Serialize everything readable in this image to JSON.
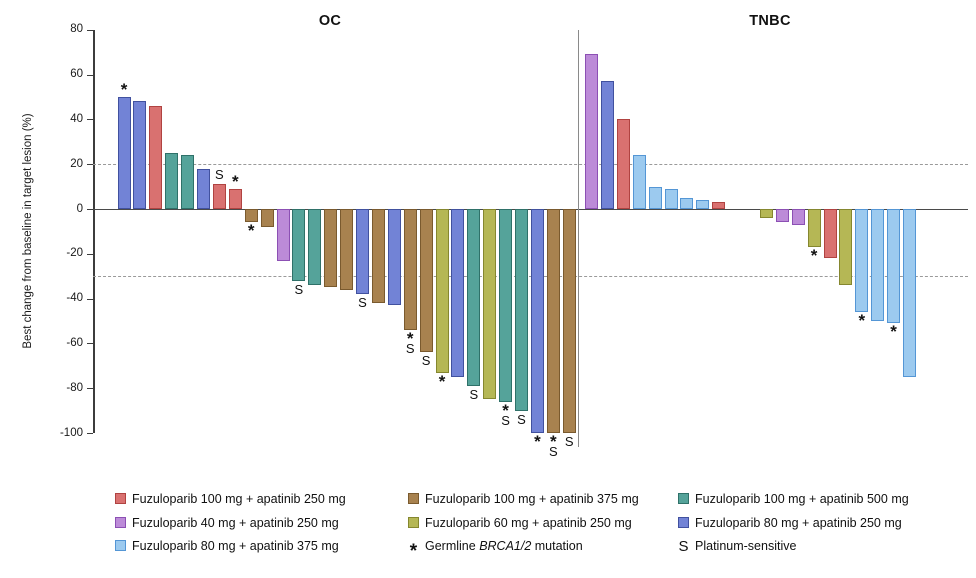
{
  "figure": {
    "y_axis_label": "Best change from baseline in target lesion (%)"
  },
  "series_colors": {
    "fuzu100_apa250": {
      "fill": "#D97170",
      "stroke": "#B04341",
      "label": "Fuzuloparib 100 mg + apatinib 250 mg"
    },
    "fuzu100_apa375": {
      "fill": "#A8824F",
      "stroke": "#7A5A2E",
      "label": "Fuzuloparib 100 mg + apatinib 375 mg"
    },
    "fuzu100_apa500": {
      "fill": "#55A39A",
      "stroke": "#2F7169",
      "label": "Fuzuloparib 100 mg + apatinib 500 mg"
    },
    "fuzu40_apa250": {
      "fill": "#BC8BD8",
      "stroke": "#8C50B4",
      "label": "Fuzuloparib 40 mg + apatinib 250 mg"
    },
    "fuzu60_apa250": {
      "fill": "#B5B755",
      "stroke": "#85872F",
      "label": "Fuzuloparib 60 mg + apatinib 250 mg"
    },
    "fuzu80_apa250": {
      "fill": "#7283D6",
      "stroke": "#41519F",
      "label": "Fuzuloparib 80 mg + apatinib 250 mg"
    },
    "fuzu80_apa375": {
      "fill": "#9CCAEF",
      "stroke": "#5496D5",
      "label": "Fuzuloparib 80 mg + apatinib 375 mg"
    }
  },
  "chart_data": {
    "type": "bar",
    "subtype": "waterfall",
    "ylabel": "Best change from baseline in target lesion (%)",
    "ylim": [
      -100,
      80
    ],
    "yticks": [
      80,
      60,
      40,
      20,
      0,
      -20,
      -40,
      -60,
      -80,
      -100
    ],
    "reference_lines_y": [
      20,
      -30
    ],
    "grid": false,
    "flag_meanings": {
      "*": "Germline BRCA1/2 mutation",
      "S": "Platinum-sensitive"
    },
    "panels": [
      {
        "title": "OC",
        "bars": [
          {
            "value": 50,
            "series": "fuzu80_apa250",
            "flags": "*"
          },
          {
            "value": 48,
            "series": "fuzu80_apa250",
            "flags": ""
          },
          {
            "value": 46,
            "series": "fuzu100_apa250",
            "flags": ""
          },
          {
            "value": 25,
            "series": "fuzu100_apa500",
            "flags": ""
          },
          {
            "value": 24,
            "series": "fuzu100_apa500",
            "flags": ""
          },
          {
            "value": 18,
            "series": "fuzu80_apa250",
            "flags": ""
          },
          {
            "value": 11,
            "series": "fuzu100_apa250",
            "flags": "S"
          },
          {
            "value": 9,
            "series": "fuzu100_apa250",
            "flags": "*"
          },
          {
            "value": -6,
            "series": "fuzu100_apa375",
            "flags": "*"
          },
          {
            "value": -8,
            "series": "fuzu100_apa375",
            "flags": ""
          },
          {
            "value": -23,
            "series": "fuzu40_apa250",
            "flags": ""
          },
          {
            "value": -32,
            "series": "fuzu100_apa500",
            "flags": "S"
          },
          {
            "value": -34,
            "series": "fuzu100_apa500",
            "flags": ""
          },
          {
            "value": -35,
            "series": "fuzu100_apa375",
            "flags": ""
          },
          {
            "value": -36,
            "series": "fuzu100_apa375",
            "flags": ""
          },
          {
            "value": -38,
            "series": "fuzu80_apa250",
            "flags": "S"
          },
          {
            "value": -42,
            "series": "fuzu100_apa375",
            "flags": ""
          },
          {
            "value": -43,
            "series": "fuzu80_apa250",
            "flags": ""
          },
          {
            "value": -54,
            "series": "fuzu100_apa375",
            "flags": "*S"
          },
          {
            "value": -64,
            "series": "fuzu100_apa375",
            "flags": "S"
          },
          {
            "value": -73,
            "series": "fuzu60_apa250",
            "flags": "*"
          },
          {
            "value": -75,
            "series": "fuzu80_apa250",
            "flags": ""
          },
          {
            "value": -79,
            "series": "fuzu100_apa500",
            "flags": "S"
          },
          {
            "value": -85,
            "series": "fuzu60_apa250",
            "flags": ""
          },
          {
            "value": -86,
            "series": "fuzu100_apa500",
            "flags": "*S"
          },
          {
            "value": -90,
            "series": "fuzu100_apa500",
            "flags": "S"
          },
          {
            "value": -100,
            "series": "fuzu80_apa250",
            "flags": "*"
          },
          {
            "value": -100,
            "series": "fuzu100_apa375",
            "flags": "*S"
          },
          {
            "value": -100,
            "series": "fuzu100_apa375",
            "flags": "S"
          }
        ]
      },
      {
        "title": "TNBC",
        "bars": [
          {
            "value": 69,
            "series": "fuzu40_apa250",
            "flags": ""
          },
          {
            "value": 57,
            "series": "fuzu80_apa250",
            "flags": ""
          },
          {
            "value": 40,
            "series": "fuzu100_apa250",
            "flags": ""
          },
          {
            "value": 24,
            "series": "fuzu80_apa375",
            "flags": ""
          },
          {
            "value": 10,
            "series": "fuzu80_apa375",
            "flags": ""
          },
          {
            "value": 9,
            "series": "fuzu80_apa375",
            "flags": ""
          },
          {
            "value": 5,
            "series": "fuzu80_apa375",
            "flags": ""
          },
          {
            "value": 4,
            "series": "fuzu80_apa375",
            "flags": ""
          },
          {
            "value": 3,
            "series": "fuzu100_apa250",
            "flags": ""
          },
          {
            "value": 0,
            "series": null,
            "flags": ""
          },
          {
            "value": 0,
            "series": null,
            "flags": ""
          },
          {
            "value": -4,
            "series": "fuzu60_apa250",
            "flags": ""
          },
          {
            "value": -6,
            "series": "fuzu40_apa250",
            "flags": ""
          },
          {
            "value": -7,
            "series": "fuzu40_apa250",
            "flags": ""
          },
          {
            "value": -17,
            "series": "fuzu60_apa250",
            "flags": "*"
          },
          {
            "value": -22,
            "series": "fuzu100_apa250",
            "flags": ""
          },
          {
            "value": -34,
            "series": "fuzu60_apa250",
            "flags": ""
          },
          {
            "value": -46,
            "series": "fuzu80_apa375",
            "flags": "*"
          },
          {
            "value": -50,
            "series": "fuzu80_apa375",
            "flags": ""
          },
          {
            "value": -51,
            "series": "fuzu80_apa375",
            "flags": "*"
          },
          {
            "value": -75,
            "series": "fuzu80_apa375",
            "flags": ""
          }
        ]
      }
    ]
  },
  "legend": {
    "columns": [
      [
        {
          "series": "fuzu100_apa250"
        },
        {
          "series": "fuzu40_apa250"
        },
        {
          "series": "fuzu80_apa375"
        }
      ],
      [
        {
          "series": "fuzu100_apa375"
        },
        {
          "series": "fuzu60_apa250"
        },
        {
          "marker": "*",
          "parts": [
            {
              "t": "Germline "
            },
            {
              "t": "BRCA1/2",
              "i": true
            },
            {
              "t": " mutation"
            }
          ]
        }
      ],
      [
        {
          "series": "fuzu100_apa500"
        },
        {
          "series": "fuzu80_apa250"
        },
        {
          "marker": "S",
          "parts": [
            {
              "t": "Platinum-sensitive"
            }
          ]
        }
      ]
    ]
  }
}
